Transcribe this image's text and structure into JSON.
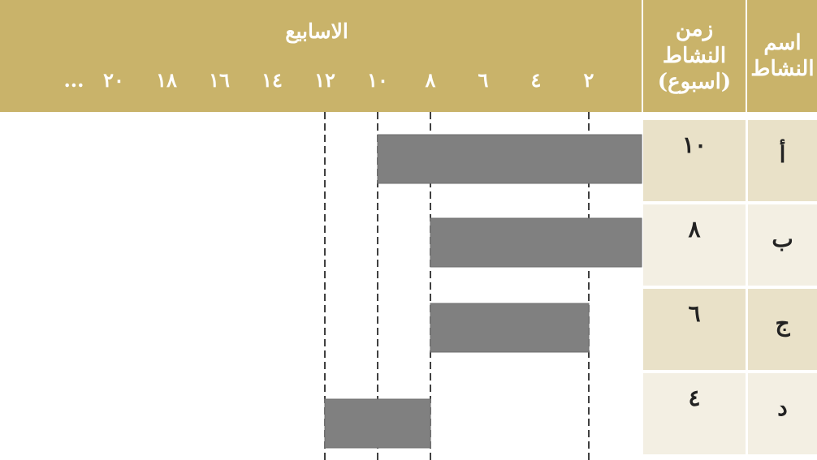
{
  "table": {
    "header_name": "اسم النشاط",
    "header_duration": "زمن النشاط (اسبوع)",
    "rows": [
      {
        "name": "أ",
        "duration": "١٠"
      },
      {
        "name": "ب",
        "duration": "٨"
      },
      {
        "name": "ج",
        "duration": "٦"
      },
      {
        "name": "د",
        "duration": "٤"
      }
    ]
  },
  "chart_data": {
    "type": "bar",
    "orientation": "horizontal-gantt",
    "direction": "rtl",
    "title": "الاسابيع",
    "x_tick_labels": [
      "٢",
      "٤",
      "٦",
      "٨",
      "١٠",
      "١٢",
      "١٤",
      "١٦",
      "١٨",
      "٢٠",
      "..."
    ],
    "x_ticks": [
      2,
      4,
      6,
      8,
      10,
      12,
      14,
      16,
      18,
      20
    ],
    "xlim": [
      0,
      21.2
    ],
    "dashed_reference_lines": [
      2,
      8,
      10,
      12
    ],
    "categories": [
      "أ",
      "ب",
      "ج",
      "د"
    ],
    "bars": [
      {
        "activity": "أ",
        "start": 0,
        "end": 10
      },
      {
        "activity": "ب",
        "start": 0,
        "end": 8
      },
      {
        "activity": "ج",
        "start": 2,
        "end": 8
      },
      {
        "activity": "د",
        "start": 8,
        "end": 12
      }
    ],
    "bar_color": "#808080",
    "header_color": "#c9b36a"
  }
}
